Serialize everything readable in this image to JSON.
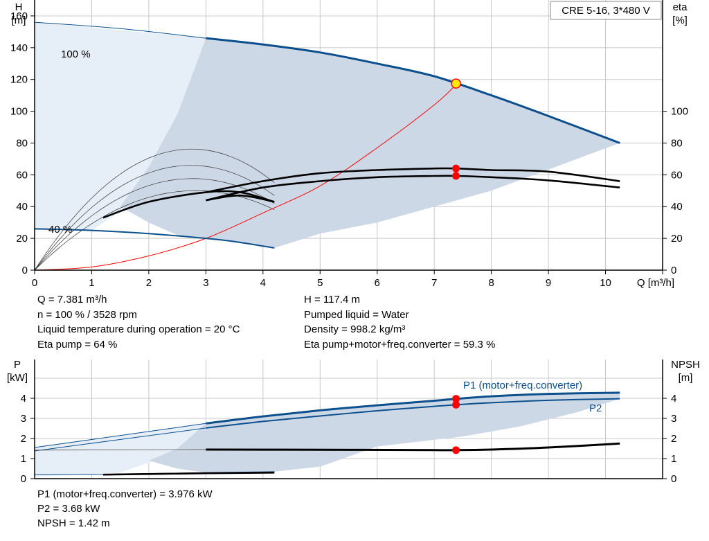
{
  "chart_data": [
    {
      "type": "line",
      "panel": "head-eta",
      "title_box": "CRE 5-16, 3*480 V",
      "y_axis_label": "H",
      "y_axis_unit": "[m]",
      "y2_axis_label": "eta",
      "y2_axis_unit": "[%]",
      "x_axis_label": "Q [m³/h]",
      "xlim": [
        0,
        11
      ],
      "ylim": [
        0,
        170
      ],
      "y2lim": [
        0,
        170
      ],
      "x_ticks": [
        "0",
        "1",
        "2",
        "3",
        "4",
        "5",
        "6",
        "7",
        "8",
        "9",
        "10"
      ],
      "y_ticks": [
        "0",
        "20",
        "40",
        "60",
        "80",
        "100",
        "120",
        "140",
        "160"
      ],
      "y2_ticks": [
        "0",
        "20",
        "40",
        "60",
        "80",
        "100"
      ],
      "grid": true,
      "curve_labels": [
        "100 %",
        "40 %"
      ],
      "series": [
        {
          "role": "head-100",
          "color": "#0b4f8c",
          "x": [
            0,
            1,
            2,
            3,
            4,
            5,
            6,
            7,
            7.4,
            8,
            9,
            10.25
          ],
          "y": [
            156,
            153.5,
            150,
            146,
            142,
            137,
            130,
            122,
            117.4,
            110,
            97,
            80
          ]
        },
        {
          "role": "head-40",
          "color": "#0b4f8c",
          "x": [
            0,
            1,
            2,
            3,
            3.5,
            4.2
          ],
          "y": [
            26,
            25,
            23,
            20,
            18,
            14
          ]
        },
        {
          "role": "eta-pump",
          "color": "#000000",
          "x": [
            3,
            4,
            5,
            6,
            7,
            7.4,
            8,
            9,
            10.25
          ],
          "y": [
            49,
            56,
            61,
            63,
            64,
            64,
            63,
            62,
            56
          ]
        },
        {
          "role": "eta-total",
          "color": "#000000",
          "x": [
            3,
            4,
            5,
            6,
            7,
            7.4,
            8,
            9,
            10.25
          ],
          "y": [
            44,
            52,
            56,
            58.5,
            59.3,
            59.3,
            58.5,
            56.5,
            52
          ]
        },
        {
          "role": "eta-pump-40",
          "color": "#000000",
          "x": [
            1.2,
            2,
            3,
            3.6,
            4.2
          ],
          "y": [
            33,
            43,
            49,
            49,
            43
          ]
        },
        {
          "role": "eta-total-40",
          "color": "#000000",
          "x": [
            3,
            3.6,
            4.2
          ],
          "y": [
            44,
            47,
            43
          ]
        },
        {
          "role": "system-curve",
          "color": "#ff0000",
          "x": [
            0,
            1,
            2,
            3,
            4,
            5,
            6,
            7,
            7.4
          ],
          "y": [
            0,
            2,
            9,
            20,
            36,
            53,
            77,
            104,
            117.4
          ]
        }
      ],
      "duty_point": {
        "x": 7.381,
        "y": 117.4
      },
      "eta_points": [
        64,
        59.3
      ]
    },
    {
      "type": "line",
      "panel": "power-npsh",
      "y_axis_label": "P",
      "y_axis_unit": "[kW]",
      "y2_axis_label": "NPSH",
      "y2_axis_unit": "[m]",
      "xlim": [
        0,
        11
      ],
      "ylim": [
        0,
        5
      ],
      "y_ticks": [
        "0",
        "1",
        "2",
        "3",
        "4"
      ],
      "y2_ticks": [
        "0",
        "1",
        "2",
        "3",
        "4"
      ],
      "grid": true,
      "series_labels": [
        "P1 (motor+freq.converter)",
        "P2"
      ],
      "series": [
        {
          "role": "P1",
          "color": "#0b4f8c",
          "x": [
            0,
            3,
            4,
            5,
            6,
            7,
            7.4,
            8,
            9,
            10.25
          ],
          "y": [
            1.55,
            2.75,
            3.1,
            3.4,
            3.65,
            3.88,
            3.976,
            4.1,
            4.22,
            4.28
          ]
        },
        {
          "role": "P2",
          "color": "#0b4f8c",
          "x": [
            0,
            3,
            4,
            5,
            6,
            7,
            7.4,
            8,
            9,
            10.25
          ],
          "y": [
            1.38,
            2.52,
            2.85,
            3.12,
            3.38,
            3.6,
            3.68,
            3.78,
            3.9,
            3.98
          ]
        },
        {
          "role": "NPSH",
          "color": "#000000",
          "x": [
            3,
            5,
            7,
            7.4,
            8,
            9,
            10.25
          ],
          "y": [
            1.45,
            1.44,
            1.42,
            1.42,
            1.45,
            1.55,
            1.75
          ]
        },
        {
          "role": "P-40",
          "color": "#0b4f8c",
          "x": [
            0,
            1.2,
            3,
            4.2
          ],
          "y": [
            0.2,
            0.22,
            0.3,
            0.35
          ]
        }
      ],
      "duty_points": [
        3.976,
        3.68,
        1.42
      ]
    }
  ],
  "results_top": {
    "q": "Q = 7.381 m³/h",
    "n": "n = 100 % / 3528 rpm",
    "temp": "Liquid temperature during operation = 20 °C",
    "eta_pump": "Eta pump = 64 %",
    "h": "H = 117.4 m",
    "liquid": "Pumped liquid = Water",
    "density": "Density = 998.2 kg/m³",
    "eta_total": "Eta pump+motor+freq.converter = 59.3 %"
  },
  "results_bottom": {
    "p1": "P1 (motor+freq.converter) = 3.976 kW",
    "p2": "P2 = 3.68 kW",
    "npsh": "NPSH = 1.42 m"
  },
  "colors": {
    "curve_blue": "#0b4f8c",
    "area_fill": "#cdd8e6",
    "area_light": "#e6eef8",
    "duty_yellow": "#ffee00",
    "marker_red": "#ff0000",
    "grid": "#c8c8c8"
  }
}
